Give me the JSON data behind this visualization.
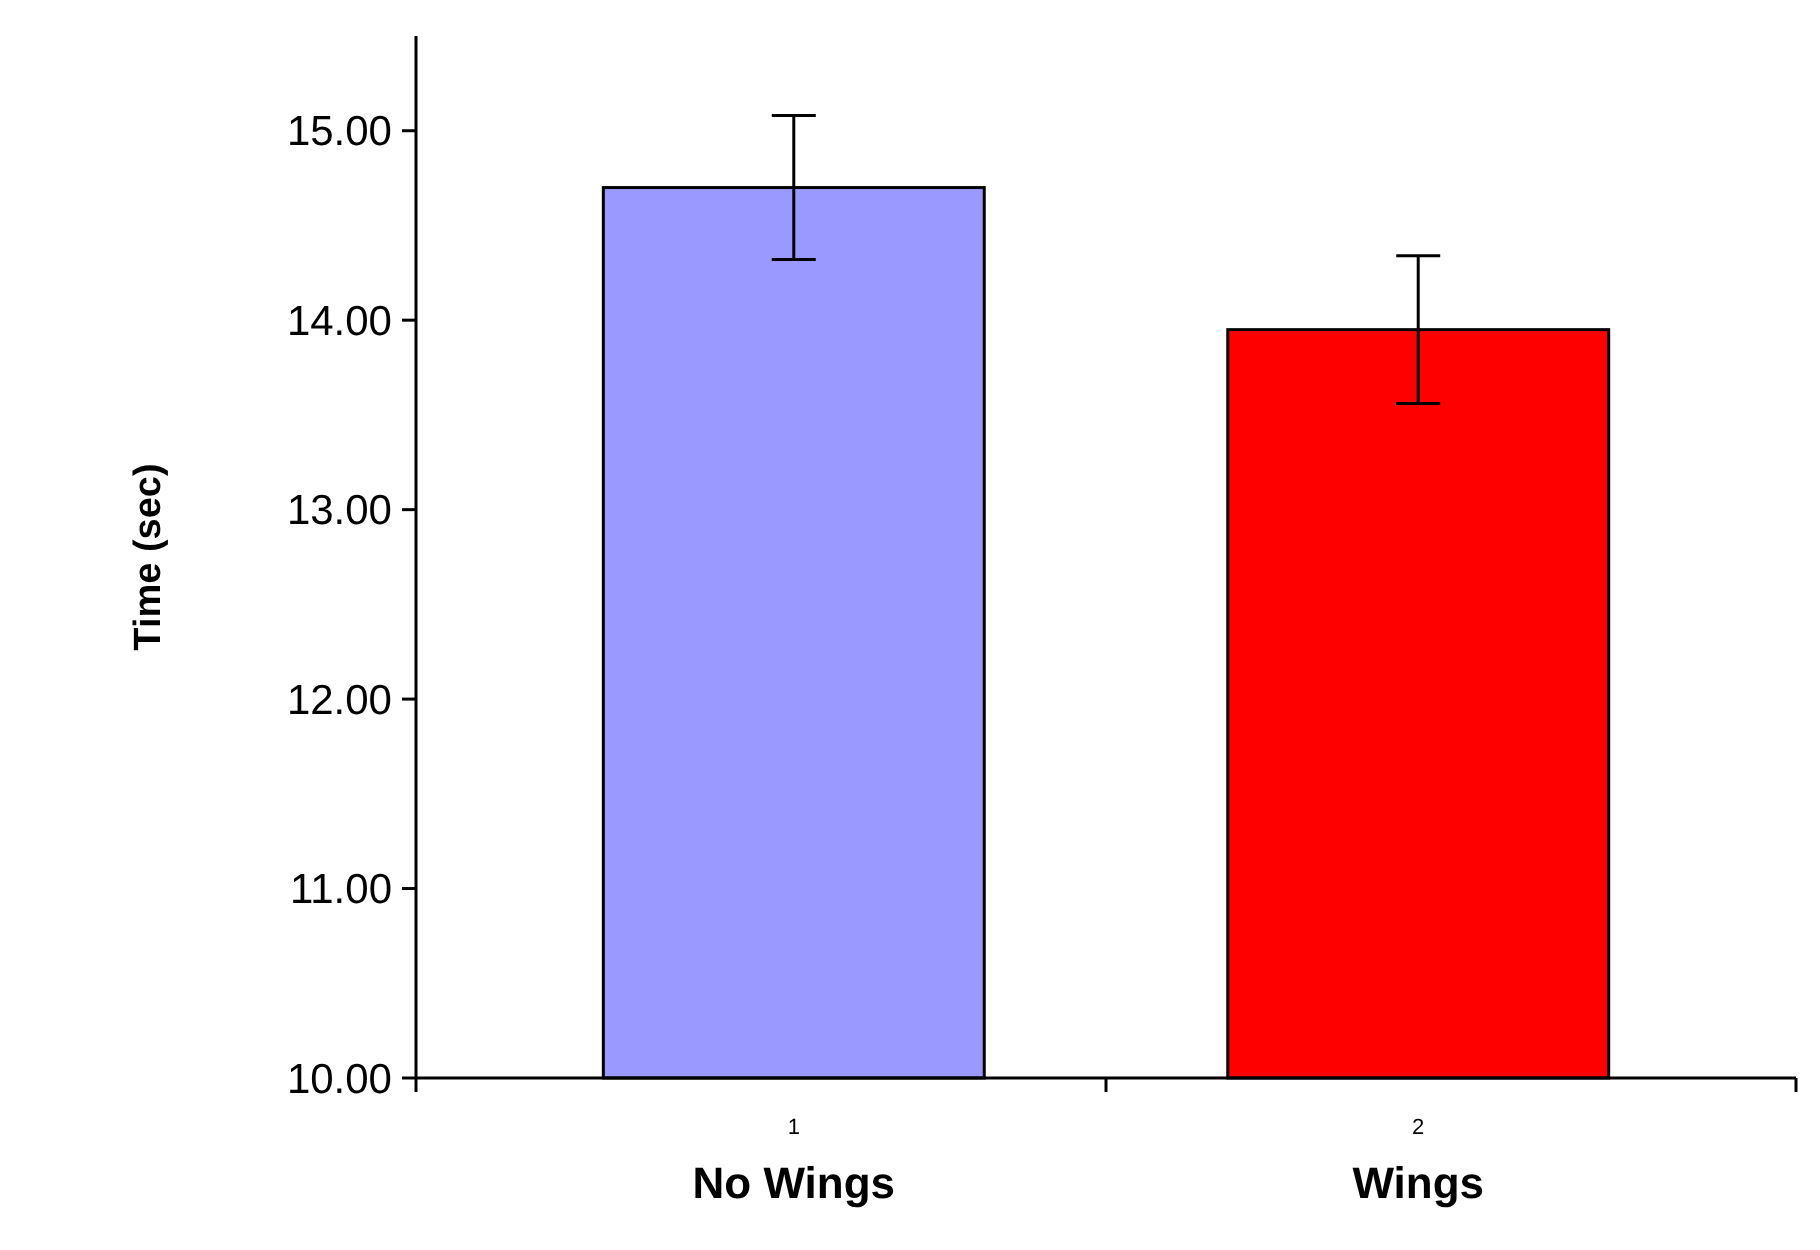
{
  "chart_data": {
    "type": "bar",
    "ylabel": "Time (sec)",
    "categories": [
      "No Wings",
      "Wings"
    ],
    "values": [
      14.7,
      13.95
    ],
    "colors": [
      "#9999ff",
      "#ff0000"
    ],
    "errors": [
      0.38,
      0.39
    ],
    "ylim": [
      10,
      15.5
    ],
    "yticks": [
      {
        "value": 10,
        "label": "10.00"
      },
      {
        "value": 11,
        "label": "11.00"
      },
      {
        "value": 12,
        "label": "12.00"
      },
      {
        "value": 13,
        "label": "13.00"
      },
      {
        "value": 14,
        "label": "14.00"
      },
      {
        "value": 15,
        "label": "15.00"
      }
    ],
    "annotations": [
      "1",
      "2"
    ]
  }
}
